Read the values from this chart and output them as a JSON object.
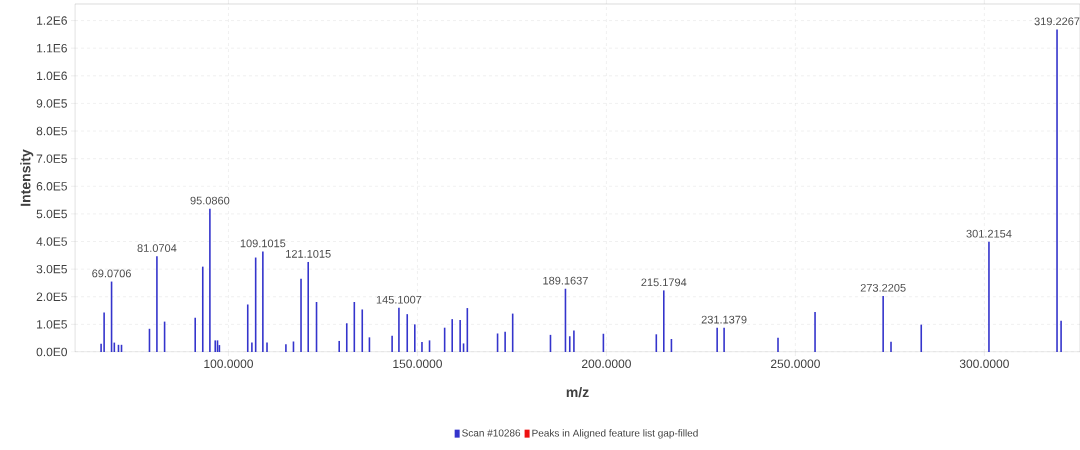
{
  "chart_data": {
    "type": "bar",
    "xlabel": "m/z",
    "ylabel": "Intensity",
    "x": [
      66.3,
      67.1,
      69.0706,
      69.8,
      70.9,
      71.7,
      79.1,
      81.0704,
      83.1,
      91.2,
      93.2,
      95.086,
      96.5,
      97.1,
      97.6,
      105.1,
      106.2,
      107.2,
      109.1015,
      110.2,
      115.2,
      117.2,
      119.2,
      121.1015,
      123.3,
      129.3,
      131.3,
      133.3,
      135.4,
      137.3,
      143.3,
      145.1007,
      147.3,
      149.3,
      151.2,
      153.2,
      157.2,
      159.2,
      161.3,
      162.2,
      163.2,
      171.2,
      173.2,
      175.2,
      185.2,
      189.1637,
      190.3,
      191.4,
      199.2,
      213.2,
      215.1794,
      217.2,
      229.3,
      231.1379,
      245.4,
      255.2,
      273.2205,
      275.3,
      283.3,
      301.2154,
      319.2267,
      320.3
    ],
    "series": [
      {
        "name": "Scan #10286",
        "color": "#3434cc",
        "values": [
          30000,
          143000,
          255000,
          34000,
          26000,
          26000,
          84000,
          347000,
          110000,
          124000,
          309000,
          519000,
          42000,
          42000,
          25000,
          172000,
          34000,
          342000,
          364000,
          34000,
          28000,
          38000,
          265000,
          326000,
          181000,
          40000,
          104000,
          181000,
          154000,
          53000,
          59000,
          160000,
          137000,
          100000,
          36000,
          42000,
          88000,
          119000,
          116000,
          31000,
          159000,
          67000,
          73000,
          139000,
          62000,
          229000,
          57000,
          78000,
          66000,
          64000,
          223000,
          47000,
          88000,
          88000,
          52000,
          145000,
          203000,
          37000,
          99000,
          399000,
          1168000,
          113000
        ]
      },
      {
        "name": "Peaks in Aligned feature list gap-filled",
        "color": "#ee1111",
        "values": [
          null,
          null,
          null,
          null,
          null,
          null,
          null,
          null,
          null,
          null,
          null,
          null,
          null,
          null,
          null,
          null,
          null,
          null,
          null,
          null,
          null,
          null,
          null,
          null,
          null,
          null,
          null,
          null,
          null,
          null,
          null,
          null,
          null,
          null,
          null,
          null,
          null,
          null,
          null,
          null,
          null,
          null,
          null,
          null,
          null,
          null,
          null,
          null,
          null,
          null,
          null,
          null,
          null,
          null,
          null,
          null,
          null,
          null,
          null,
          null,
          null,
          null
        ]
      }
    ],
    "xlim": [
      59.4,
      325.3
    ],
    "ylim": [
      0,
      1260000
    ],
    "xticks": [
      {
        "value": 100,
        "label": "100.0000"
      },
      {
        "value": 150,
        "label": "150.0000"
      },
      {
        "value": 200,
        "label": "200.0000"
      },
      {
        "value": 250,
        "label": "250.0000"
      },
      {
        "value": 300,
        "label": "300.0000"
      }
    ],
    "yticks": [
      {
        "value": 0,
        "label": "0.0E0"
      },
      {
        "value": 100000,
        "label": "1.0E5"
      },
      {
        "value": 200000,
        "label": "2.0E5"
      },
      {
        "value": 300000,
        "label": "3.0E5"
      },
      {
        "value": 400000,
        "label": "4.0E5"
      },
      {
        "value": 500000,
        "label": "5.0E5"
      },
      {
        "value": 600000,
        "label": "6.0E5"
      },
      {
        "value": 700000,
        "label": "7.0E5"
      },
      {
        "value": 800000,
        "label": "8.0E5"
      },
      {
        "value": 900000,
        "label": "9.0E5"
      },
      {
        "value": 1000000,
        "label": "1.0E6"
      },
      {
        "value": 1100000,
        "label": "1.1E6"
      },
      {
        "value": 1200000,
        "label": "1.2E6"
      }
    ],
    "grid": true,
    "legend": "bottom",
    "annotations": [
      {
        "text": "69.0706",
        "x": 69.0706,
        "y": 255000
      },
      {
        "text": "81.0704",
        "x": 81.0704,
        "y": 347000
      },
      {
        "text": "95.0860",
        "x": 95.086,
        "y": 519000
      },
      {
        "text": "109.1015",
        "x": 109.1015,
        "y": 364000
      },
      {
        "text": "121.1015",
        "x": 121.1015,
        "y": 326000
      },
      {
        "text": "145.1007",
        "x": 145.1007,
        "y": 160000
      },
      {
        "text": "189.1637",
        "x": 189.1637,
        "y": 229000
      },
      {
        "text": "215.1794",
        "x": 215.1794,
        "y": 223000
      },
      {
        "text": "231.1379",
        "x": 231.1379,
        "y": 88000
      },
      {
        "text": "273.2205",
        "x": 273.2205,
        "y": 203000
      },
      {
        "text": "301.2154",
        "x": 301.2154,
        "y": 399000
      },
      {
        "text": "319.2267",
        "x": 319.2267,
        "y": 1168000
      }
    ]
  }
}
